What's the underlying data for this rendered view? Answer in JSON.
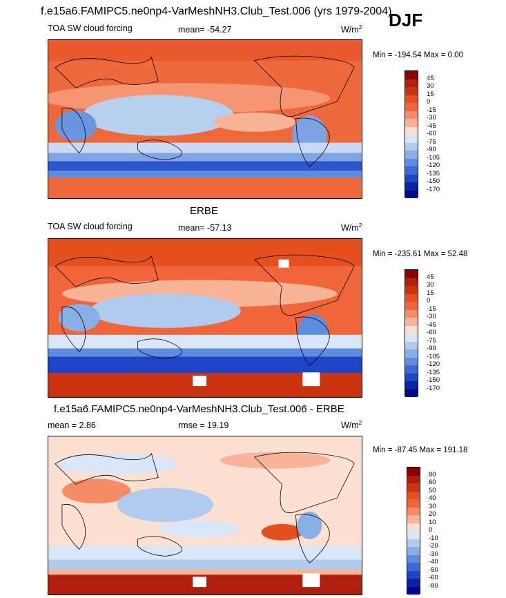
{
  "header": {
    "model_title": "f.e15a6.FAMIPC5.ne0np4-VarMeshNH3.Club_Test.006 (yrs 1979-2004)",
    "season": "DJF"
  },
  "panels": [
    {
      "label": "TOA SW cloud forcing",
      "mean_text": "mean= -54.27",
      "units_base": "W/m",
      "units_sup": "2",
      "minmax": "Min = -194.54 Max =   0.00",
      "levels": [
        "45",
        "30",
        "15",
        "0",
        "-15",
        "-30",
        "-45",
        "-60",
        "-75",
        "-90",
        "-105",
        "-120",
        "-135",
        "-150",
        "-170"
      ]
    },
    {
      "title": "ERBE",
      "label": "TOA SW cloud forcing",
      "mean_text": "mean= -57.13",
      "units_base": "W/m",
      "units_sup": "2",
      "minmax": "Min = -235.61 Max =  52.48",
      "levels": [
        "45",
        "30",
        "15",
        "0",
        "-15",
        "-30",
        "-45",
        "-60",
        "-75",
        "-90",
        "-105",
        "-120",
        "-135",
        "-150",
        "-170"
      ]
    },
    {
      "title": "f.e15a6.FAMIPC5.ne0np4-VarMeshNH3.Club_Test.006 - ERBE",
      "mean_text": "mean =   2.86",
      "rmse_text": "rmse =  19.19",
      "units_base": "W/m",
      "units_sup": "2",
      "minmax": "Min = -87.45 Max = 191.18",
      "levels": [
        "80",
        "60",
        "50",
        "40",
        "30",
        "20",
        "10",
        "0",
        "-10",
        "-20",
        "-30",
        "-40",
        "-50",
        "-60",
        "-80"
      ]
    }
  ],
  "colors": {
    "colorbar": [
      "#8b0000",
      "#b01e0e",
      "#cc3311",
      "#e4501e",
      "#f0663a",
      "#f58c66",
      "#f8b399",
      "#fce0d2",
      "#d8e6f7",
      "#b1cbef",
      "#8aaee6",
      "#5d8de0",
      "#3a6ad4",
      "#1f45c4",
      "#0a22a8",
      "#00088a"
    ],
    "ocean_land_outline": "#000000"
  },
  "chart_data": [
    {
      "type": "heatmap",
      "title": "f.e15a6.FAMIPC5.ne0np4-VarMeshNH3.Club_Test.006 (yrs 1979-2004)",
      "variable": "TOA SW cloud forcing",
      "units": "W/m2",
      "mean": -54.27,
      "min": -194.54,
      "max": 0.0,
      "contour_levels": [
        45,
        30,
        15,
        0,
        -15,
        -30,
        -45,
        -60,
        -75,
        -90,
        -105,
        -120,
        -135,
        -150,
        -170
      ]
    },
    {
      "type": "heatmap",
      "title": "ERBE",
      "variable": "TOA SW cloud forcing",
      "units": "W/m2",
      "mean": -57.13,
      "min": -235.61,
      "max": 52.48,
      "contour_levels": [
        45,
        30,
        15,
        0,
        -15,
        -30,
        -45,
        -60,
        -75,
        -90,
        -105,
        -120,
        -135,
        -150,
        -170
      ]
    },
    {
      "type": "heatmap",
      "title": "f.e15a6.FAMIPC5.ne0np4-VarMeshNH3.Club_Test.006 - ERBE",
      "units": "W/m2",
      "mean": 2.86,
      "rmse": 19.19,
      "min": -87.45,
      "max": 191.18,
      "contour_levels": [
        80,
        60,
        50,
        40,
        30,
        20,
        10,
        0,
        -10,
        -20,
        -30,
        -40,
        -50,
        -60,
        -80
      ]
    }
  ]
}
